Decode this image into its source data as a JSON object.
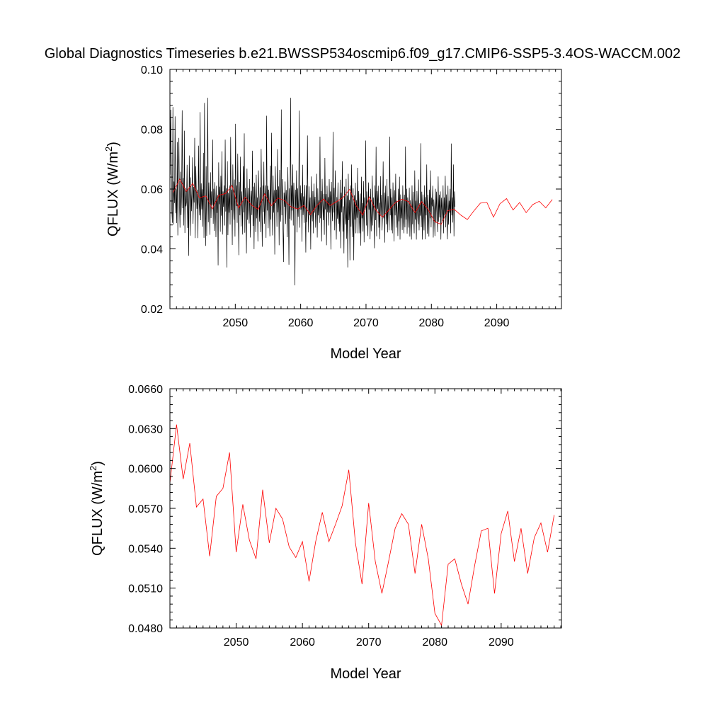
{
  "title": "Global Diagnostics Timeseries b.e21.BWSSP534oscmip6.f09_g17.CMIP6-SSP5-3.4OS-WACCM.002",
  "colors": {
    "monthly": "#000000",
    "annual": "#ff0000",
    "frame": "#000000"
  },
  "chart_data": [
    {
      "type": "line",
      "xlabel": "Model Year",
      "ylabel": {
        "main": "QFLUX (W/m",
        "sup": "2",
        "close": ")"
      },
      "xlim": [
        2040,
        2099.9
      ],
      "ylim": [
        0.02,
        0.1
      ],
      "xticks": [
        2050,
        2060,
        2070,
        2080,
        2090
      ],
      "xtick_labels": [
        "2050",
        "2060",
        "2070",
        "2080",
        "2090"
      ],
      "yticks": [
        0.02,
        0.04,
        0.06,
        0.08,
        0.1
      ],
      "ytick_labels": [
        "0.02",
        "0.04",
        "0.06",
        "0.08",
        "0.10"
      ],
      "series": [
        {
          "kind": "monthly",
          "color": "#000000",
          "x_start": 2040.04,
          "x_step": 0.0833333,
          "values": [
            0.0648,
            0.0865,
            0.0718,
            0.0527,
            0.0487,
            0.0874,
            0.0481,
            0.0625,
            0.0553,
            0.0843,
            0.0519,
            0.0599,
            0.0486,
            0.0757,
            0.0445,
            0.0622,
            0.0771,
            0.056,
            0.0471,
            0.0658,
            0.0513,
            0.0592,
            0.0863,
            0.0536,
            0.0637,
            0.0478,
            0.0795,
            0.0453,
            0.0603,
            0.0542,
            0.0558,
            0.0681,
            0.047,
            0.0601,
            0.0377,
            0.0712,
            0.0571,
            0.0444,
            0.0639,
            0.0526,
            0.0583,
            0.0706,
            0.0484,
            0.0607,
            0.0555,
            0.0771,
            0.0436,
            0.0676,
            0.0592,
            0.0534,
            0.0598,
            0.0436,
            0.0745,
            0.0555,
            0.0512,
            0.0857,
            0.0496,
            0.0619,
            0.0532,
            0.0599,
            0.0474,
            0.0721,
            0.0437,
            0.0888,
            0.0571,
            0.041,
            0.0676,
            0.0443,
            0.0612,
            0.0905,
            0.0489,
            0.0622,
            0.0541,
            0.0447,
            0.0656,
            0.0503,
            0.0592,
            0.0547,
            0.0765,
            0.0484,
            0.0601,
            0.046,
            0.0623,
            0.0567,
            0.0439,
            0.0611,
            0.052,
            0.058,
            0.0345,
            0.0689,
            0.0549,
            0.0608,
            0.0457,
            0.0644,
            0.0511,
            0.0726,
            0.0448,
            0.0592,
            0.0541,
            0.0612,
            0.0478,
            0.0765,
            0.0525,
            0.0602,
            0.0338,
            0.0693,
            0.0446,
            0.0587,
            0.0521,
            0.0612,
            0.0481,
            0.0774,
            0.0529,
            0.0598,
            0.0413,
            0.0682,
            0.0551,
            0.0497,
            0.0632,
            0.0441,
            0.0818,
            0.0543,
            0.0612,
            0.0487,
            0.0718,
            0.0561,
            0.0379,
            0.0624,
            0.0512,
            0.0708,
            0.0475,
            0.0592,
            0.0553,
            0.0448,
            0.0676,
            0.0522,
            0.0786,
            0.0454,
            0.0604,
            0.0537,
            0.0385,
            0.0668,
            0.0497,
            0.0604,
            0.0561,
            0.0485,
            0.0633,
            0.0438,
            0.0562,
            0.0594,
            0.0513,
            0.0728,
            0.0477,
            0.0608,
            0.0399,
            0.0621,
            0.0551,
            0.0456,
            0.0648,
            0.0502,
            0.0572,
            0.0425,
            0.0662,
            0.0575,
            0.0491,
            0.0606,
            0.0456,
            0.0734,
            0.0555,
            0.0407,
            0.0612,
            0.0523,
            0.0691,
            0.0484,
            0.0549,
            0.0612,
            0.0437,
            0.0845,
            0.0528,
            0.0611,
            0.0469,
            0.0598,
            0.0551,
            0.0442,
            0.0678,
            0.0498,
            0.0788,
            0.0556,
            0.0445,
            0.0645,
            0.0521,
            0.0596,
            0.0381,
            0.0676,
            0.0553,
            0.0598,
            0.0474,
            0.0733,
            0.0522,
            0.0609,
            0.0412,
            0.0664,
            0.0547,
            0.0491,
            0.0866,
            0.0512,
            0.0633,
            0.0472,
            0.0356,
            0.0588,
            0.0541,
            0.0625,
            0.0483,
            0.0597,
            0.0556,
            0.0439,
            0.0673,
            0.0526,
            0.0347,
            0.0602,
            0.0501,
            0.0905,
            0.0495,
            0.0612,
            0.0528,
            0.0682,
            0.0478,
            0.0621,
            0.0552,
            0.0278,
            0.0598,
            0.0534,
            0.0662,
            0.0455,
            0.0602,
            0.0507,
            0.0582,
            0.0862,
            0.0471,
            0.0612,
            0.0531,
            0.0586,
            0.0424,
            0.0681,
            0.0513,
            0.0575,
            0.0487,
            0.0614,
            0.0538,
            0.0388,
            0.0612,
            0.0489,
            0.0779,
            0.0541,
            0.0455,
            0.0609,
            0.0512,
            0.0572,
            0.0398,
            0.0642,
            0.0523,
            0.0492,
            0.0593,
            0.0452,
            0.0618,
            0.0521,
            0.0574,
            0.0471,
            0.0541,
            0.0651,
            0.0438,
            0.0602,
            0.0512,
            0.0562,
            0.0487,
            0.0775,
            0.0502,
            0.0593,
            0.0425,
            0.0634,
            0.0551,
            0.0496,
            0.0584,
            0.0447,
            0.0704,
            0.0532,
            0.0583,
            0.0412,
            0.0611,
            0.0522,
            0.0573,
            0.0478,
            0.0633,
            0.0521,
            0.0592,
            0.0398,
            0.0624,
            0.0542,
            0.0493,
            0.0791,
            0.0521,
            0.0604,
            0.0462,
            0.0662,
            0.0551,
            0.0431,
            0.0573,
            0.0501,
            0.0622,
            0.0484,
            0.0559,
            0.0458,
            0.0631,
            0.0402,
            0.0588,
            0.0522,
            0.0693,
            0.0458,
            0.0542,
            0.0385,
            0.0608,
            0.0512,
            0.0481,
            0.0634,
            0.0434,
            0.0578,
            0.0338,
            0.0651,
            0.0496,
            0.0564,
            0.0362,
            0.0612,
            0.0474,
            0.0682,
            0.0521,
            0.0439,
            0.0602,
            0.0362,
            0.0579,
            0.0498,
            0.0621,
            0.0452,
            0.0563,
            0.0504,
            0.0671,
            0.0452,
            0.0593,
            0.0512,
            0.0452,
            0.0585,
            0.0411,
            0.0641,
            0.0502,
            0.0553,
            0.0458,
            0.0626,
            0.0422,
            0.0572,
            0.0531,
            0.0762,
            0.0478,
            0.0592,
            0.0501,
            0.0443,
            0.0622,
            0.0531,
            0.0566,
            0.0432,
            0.0601,
            0.0459,
            0.0532,
            0.0645,
            0.0478,
            0.0572,
            0.0522,
            0.0402,
            0.0612,
            0.0496,
            0.0741,
            0.0442,
            0.0593,
            0.0534,
            0.0611,
            0.0471,
            0.0554,
            0.0432,
            0.0643,
            0.0512,
            0.0581,
            0.0462,
            0.0532,
            0.0692,
            0.0502,
            0.0588,
            0.0421,
            0.0611,
            0.0535,
            0.0482,
            0.0633,
            0.0455,
            0.0576,
            0.0519,
            0.0462,
            0.0775,
            0.0512,
            0.0601,
            0.0462,
            0.0572,
            0.0452,
            0.0622,
            0.0541,
            0.0425,
            0.0596,
            0.0512,
            0.0651,
            0.0471,
            0.0561,
            0.0521,
            0.0443,
            0.0601,
            0.0492,
            0.0641,
            0.0431,
            0.0582,
            0.0502,
            0.0561,
            0.0463,
            0.0612,
            0.0512,
            0.0452,
            0.0581,
            0.0472,
            0.0742,
            0.0498,
            0.0601,
            0.0451,
            0.0572,
            0.0531,
            0.0471,
            0.0604,
            0.0441,
            0.0562,
            0.0521,
            0.0431,
            0.0612,
            0.0482,
            0.0591,
            0.0502,
            0.0452,
            0.0662,
            0.0498,
            0.0561,
            0.0431,
            0.0593,
            0.0522,
            0.0482,
            0.0632,
            0.0462,
            0.0552,
            0.0511,
            0.0753,
            0.0472,
            0.0591,
            0.0431,
            0.0582,
            0.0542,
            0.0462,
            0.0612,
            0.0432,
            0.0573,
            0.0512,
            0.0682,
            0.0451,
            0.0581,
            0.0531,
            0.0441,
            0.0598,
            0.0502,
            0.0662,
            0.0472,
            0.0571,
            0.0542,
            0.0611,
            0.0438,
            0.0565,
            0.0522,
            0.0443,
            0.0601,
            0.0488,
            0.0591,
            0.0521,
            0.0456,
            0.0642,
            0.0491,
            0.0581,
            0.0505,
            0.0592,
            0.0431,
            0.0571,
            0.0532,
            0.0493,
            0.0612,
            0.0452,
            0.0572,
            0.0512,
            0.0644,
            0.0472,
            0.0582,
            0.0502,
            0.0432,
            0.0611,
            0.0481,
            0.0561,
            0.0521,
            0.0601,
            0.0452,
            0.0752,
            0.0512,
            0.0572,
            0.0488,
            0.0682,
            0.0442,
            0.0592,
            0.0541
          ]
        },
        {
          "kind": "annual",
          "color": "#ff0000",
          "x_start": 2040.5,
          "x_step": 1,
          "values": [
            0.0589,
            0.0633,
            0.0592,
            0.0619,
            0.0571,
            0.0577,
            0.0534,
            0.0579,
            0.0585,
            0.0612,
            0.0537,
            0.0573,
            0.0546,
            0.0532,
            0.0584,
            0.0544,
            0.057,
            0.0562,
            0.0541,
            0.0533,
            0.0545,
            0.0515,
            0.0545,
            0.0567,
            0.0545,
            0.0558,
            0.0572,
            0.0599,
            0.0544,
            0.0513,
            0.0574,
            0.053,
            0.0506,
            0.053,
            0.0555,
            0.0566,
            0.0558,
            0.0521,
            0.0558,
            0.0532,
            0.0491,
            0.0482,
            0.0528,
            0.0532,
            0.0513,
            0.0498,
            0.0527,
            0.0553,
            0.0555,
            0.0506,
            0.0551,
            0.0568,
            0.053,
            0.0555,
            0.0521,
            0.0548,
            0.0559,
            0.0537,
            0.0565
          ]
        }
      ]
    },
    {
      "type": "line",
      "xlabel": "Model Year",
      "ylabel": {
        "main": "QFLUX (W/m",
        "sup": "2",
        "close": ")"
      },
      "xlim": [
        2040,
        2099.1
      ],
      "ylim": [
        0.048,
        0.066
      ],
      "xticks": [
        2050,
        2060,
        2070,
        2080,
        2090
      ],
      "xtick_labels": [
        "2050",
        "2060",
        "2070",
        "2080",
        "2090"
      ],
      "yticks": [
        0.048,
        0.051,
        0.054,
        0.057,
        0.06,
        0.063,
        0.066
      ],
      "ytick_labels": [
        "0.0480",
        "0.0510",
        "0.0540",
        "0.0570",
        "0.0600",
        "0.0630",
        "0.0660"
      ],
      "series": [
        {
          "kind": "annual",
          "color": "#ff0000",
          "x_start": 2040.0,
          "x_step": 1,
          "values": [
            0.0589,
            0.0633,
            0.0592,
            0.0619,
            0.0571,
            0.0577,
            0.0534,
            0.0579,
            0.0585,
            0.0612,
            0.0537,
            0.0573,
            0.0546,
            0.0532,
            0.0584,
            0.0544,
            0.057,
            0.0562,
            0.0541,
            0.0533,
            0.0545,
            0.0515,
            0.0545,
            0.0567,
            0.0545,
            0.0558,
            0.0572,
            0.0599,
            0.0544,
            0.0513,
            0.0574,
            0.053,
            0.0506,
            0.053,
            0.0555,
            0.0566,
            0.0558,
            0.0521,
            0.0558,
            0.0532,
            0.0491,
            0.0482,
            0.0528,
            0.0532,
            0.0513,
            0.0498,
            0.0527,
            0.0553,
            0.0555,
            0.0506,
            0.0551,
            0.0568,
            0.053,
            0.0555,
            0.0521,
            0.0548,
            0.0559,
            0.0537,
            0.0565
          ]
        }
      ]
    }
  ]
}
